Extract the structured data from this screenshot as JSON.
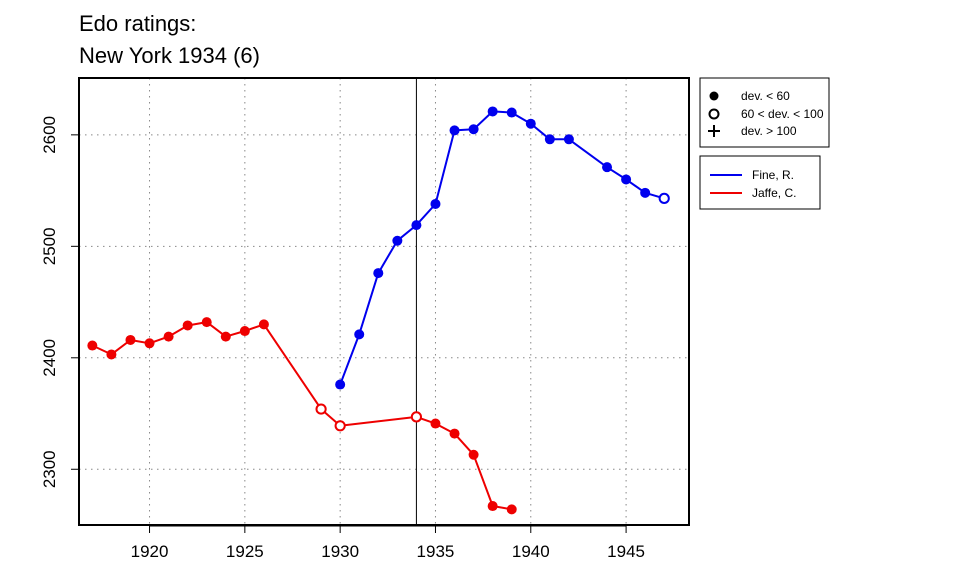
{
  "title": {
    "line1": "Edo ratings:",
    "line2": "New York 1934 (6)"
  },
  "colors": {
    "fine": "#0000ee",
    "jaffe": "#ee0000"
  },
  "legend_symbols": {
    "items": [
      {
        "symbol": "filled-circle",
        "label": "dev. < 60"
      },
      {
        "symbol": "open-circle",
        "label": "60 < dev. < 100"
      },
      {
        "symbol": "plus",
        "label": "dev. > 100"
      }
    ]
  },
  "chart_data": {
    "type": "line",
    "title": "Edo ratings:\nNew York 1934 (6)",
    "xlabel": "",
    "ylabel": "",
    "xlim": [
      1916.3,
      1948.3
    ],
    "ylim": [
      2250,
      2651
    ],
    "xticks": [
      1920,
      1925,
      1930,
      1935,
      1940,
      1945
    ],
    "yticks": [
      2300,
      2400,
      2500,
      2600
    ],
    "vline_x": 1934,
    "grid": "dotted",
    "legend_position": "right",
    "series": [
      {
        "name": "Fine, R.",
        "color": "#0000ee",
        "points": [
          {
            "x": 1930,
            "y": 2376,
            "marker": "filled"
          },
          {
            "x": 1931,
            "y": 2421,
            "marker": "filled"
          },
          {
            "x": 1932,
            "y": 2476,
            "marker": "filled"
          },
          {
            "x": 1933,
            "y": 2505,
            "marker": "filled"
          },
          {
            "x": 1934,
            "y": 2519,
            "marker": "filled"
          },
          {
            "x": 1935,
            "y": 2538,
            "marker": "filled"
          },
          {
            "x": 1936,
            "y": 2604,
            "marker": "filled"
          },
          {
            "x": 1937,
            "y": 2605,
            "marker": "filled"
          },
          {
            "x": 1938,
            "y": 2621,
            "marker": "filled"
          },
          {
            "x": 1939,
            "y": 2620,
            "marker": "filled"
          },
          {
            "x": 1940,
            "y": 2610,
            "marker": "filled"
          },
          {
            "x": 1941,
            "y": 2596,
            "marker": "filled"
          },
          {
            "x": 1942,
            "y": 2596,
            "marker": "filled"
          },
          {
            "x": 1944,
            "y": 2571,
            "marker": "filled"
          },
          {
            "x": 1945,
            "y": 2560,
            "marker": "filled"
          },
          {
            "x": 1946,
            "y": 2548,
            "marker": "filled"
          },
          {
            "x": 1947,
            "y": 2543,
            "marker": "open"
          }
        ]
      },
      {
        "name": "Jaffe, C.",
        "color": "#ee0000",
        "points": [
          {
            "x": 1917,
            "y": 2411,
            "marker": "filled"
          },
          {
            "x": 1918,
            "y": 2403,
            "marker": "filled"
          },
          {
            "x": 1919,
            "y": 2416,
            "marker": "filled"
          },
          {
            "x": 1920,
            "y": 2413,
            "marker": "filled"
          },
          {
            "x": 1921,
            "y": 2419,
            "marker": "filled"
          },
          {
            "x": 1922,
            "y": 2429,
            "marker": "filled"
          },
          {
            "x": 1923,
            "y": 2432,
            "marker": "filled"
          },
          {
            "x": 1924,
            "y": 2419,
            "marker": "filled"
          },
          {
            "x": 1925,
            "y": 2424,
            "marker": "filled"
          },
          {
            "x": 1926,
            "y": 2430,
            "marker": "filled"
          },
          {
            "x": 1929,
            "y": 2354,
            "marker": "open"
          },
          {
            "x": 1930,
            "y": 2339,
            "marker": "open"
          },
          {
            "x": 1934,
            "y": 2347,
            "marker": "open"
          },
          {
            "x": 1935,
            "y": 2341,
            "marker": "filled"
          },
          {
            "x": 1936,
            "y": 2332,
            "marker": "filled"
          },
          {
            "x": 1937,
            "y": 2313,
            "marker": "filled"
          },
          {
            "x": 1938,
            "y": 2267,
            "marker": "filled"
          },
          {
            "x": 1939,
            "y": 2264,
            "marker": "filled"
          }
        ]
      }
    ]
  }
}
